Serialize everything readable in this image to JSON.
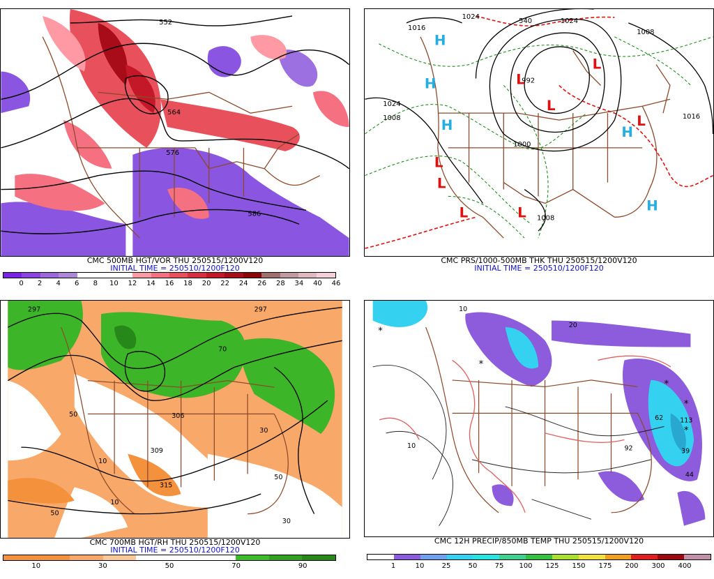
{
  "panels": [
    {
      "id": "p1",
      "caption1": "CMC 500MB HGT/VOR THU 250515/1200V120",
      "caption2": "INITIAL TIME = 250510/1200F120",
      "contour_labels": [
        "552",
        "564",
        "576",
        "586"
      ],
      "colorbar": {
        "colors": [
          "#7a22e6",
          "#8a44e0",
          "#9c66dc",
          "#ae88d8",
          "#ffffff",
          "#ffffff",
          "#ffffff",
          "#ff9aa4",
          "#f57080",
          "#e8505c",
          "#d83040",
          "#c41828",
          "#a80c18",
          "#8a0408",
          "#a07070",
          "#c09aa0",
          "#e0b8c0",
          "#f4d0d8"
        ],
        "ticks": [
          "0",
          "2",
          "4",
          "6",
          "8",
          "10",
          "12",
          "14",
          "16",
          "18",
          "20",
          "22",
          "24",
          "26",
          "28",
          "34",
          "40",
          "46"
        ]
      }
    },
    {
      "id": "p2",
      "caption1": "CMC PRS/1000-500MB THK THU 250515/1200V120",
      "caption2": "INITIAL TIME = 250510/1200F120",
      "contour_labels": [
        "1024",
        "1016",
        "540",
        "1024",
        "1008",
        "1024",
        "1008",
        "992",
        "1000",
        "1016",
        "1008",
        "1008"
      ],
      "highs": [
        "H",
        "H",
        "H",
        "H",
        "H"
      ],
      "lows": [
        "L",
        "L",
        "L",
        "L",
        "L",
        "L",
        "L",
        "L"
      ]
    },
    {
      "id": "p3",
      "caption1": "CMC 700MB HGT/RH THU 250515/1200V120",
      "caption2": "INITIAL TIME = 250510/1200F120",
      "contour_labels": [
        "297",
        "297",
        "306",
        "309",
        "315",
        "50",
        "10",
        "50",
        "30",
        "70",
        "10",
        "50",
        "30"
      ],
      "colorbar": {
        "colors": [
          "#f4913c",
          "#f4913c",
          "#f8a868",
          "#fbc898",
          "#ffffff",
          "#ffffff",
          "#ffffff",
          "#3dbb28",
          "#32a020",
          "#268818"
        ],
        "ticks": [
          "10",
          "30",
          "50",
          "70",
          "90"
        ]
      }
    },
    {
      "id": "p4",
      "caption1": "CMC 12H PRECIP/850MB TEMP THU 250515/1200V120",
      "contour_labels": [
        "10",
        "10",
        "20",
        "62",
        "92",
        "113",
        "39",
        "44"
      ],
      "colorbar": {
        "colors": [
          "#ffffff",
          "#8c5cdc",
          "#6fa0ec",
          "#34d2f0",
          "#28e4e0",
          "#40d090",
          "#34c040",
          "#aae030",
          "#f0e040",
          "#f0a020",
          "#e02020",
          "#9a0a10",
          "#c090a8"
        ],
        "ticks": [
          "1",
          "10",
          "25",
          "50",
          "75",
          "100",
          "125",
          "150",
          "175",
          "200",
          "300",
          "400"
        ]
      }
    }
  ]
}
